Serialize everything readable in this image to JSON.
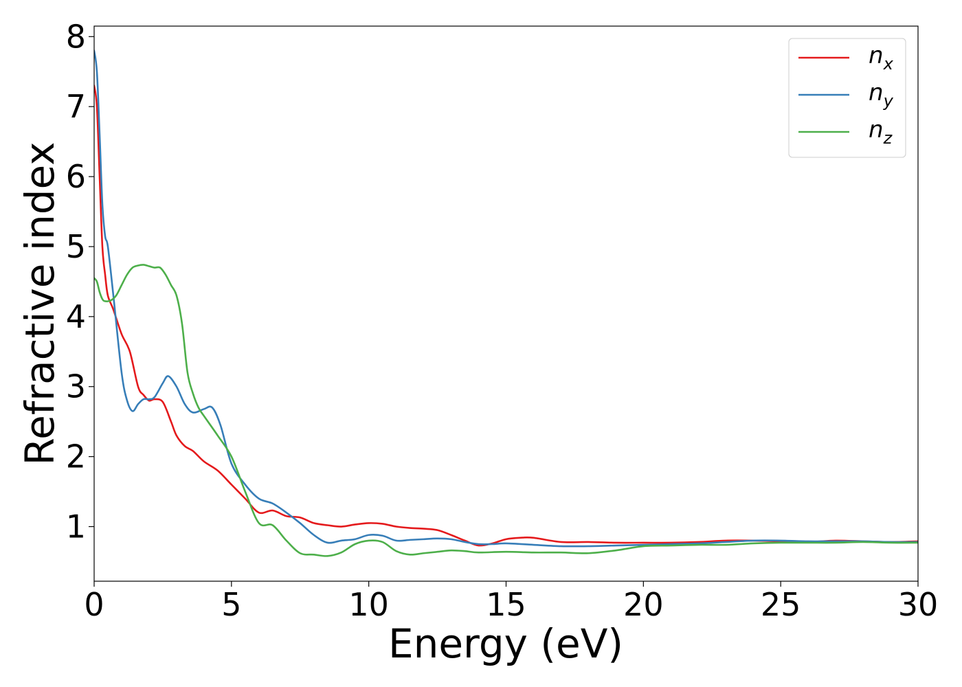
{
  "chart_data": {
    "type": "line",
    "title": "",
    "xlabel": "Energy (eV)",
    "ylabel": "Refractive index",
    "xlim": [
      0,
      30
    ],
    "ylim": [
      0.22,
      8.15
    ],
    "xticks": [
      0,
      5,
      10,
      15,
      20,
      25,
      30
    ],
    "yticks": [
      1,
      2,
      3,
      4,
      5,
      6,
      7,
      8
    ],
    "grid": false,
    "legend_position": "top-right",
    "series": [
      {
        "name": "n_x",
        "base": "n",
        "sub": "x",
        "color": "#e41a1c",
        "x": [
          0,
          0.1,
          0.2,
          0.3,
          0.4,
          0.5,
          0.7,
          1.0,
          1.3,
          1.6,
          1.8,
          2.0,
          2.2,
          2.5,
          2.8,
          3.0,
          3.3,
          3.6,
          4.0,
          4.5,
          5.0,
          5.5,
          6.0,
          6.5,
          7.0,
          7.5,
          8.0,
          8.5,
          9.0,
          9.5,
          10.0,
          10.5,
          11.0,
          11.5,
          12.0,
          12.5,
          13.0,
          13.5,
          14.0,
          14.5,
          15.0,
          15.5,
          16.0,
          17.0,
          18.0,
          19.0,
          20.0,
          21.0,
          22.0,
          23.0,
          24.0,
          25.0,
          26.0,
          27.0,
          28.0,
          29.0,
          30.0
        ],
        "values": [
          7.3,
          7.0,
          6.0,
          5.0,
          4.6,
          4.3,
          4.1,
          3.75,
          3.5,
          3.0,
          2.88,
          2.8,
          2.82,
          2.78,
          2.5,
          2.3,
          2.15,
          2.08,
          1.93,
          1.8,
          1.6,
          1.4,
          1.2,
          1.23,
          1.15,
          1.13,
          1.05,
          1.02,
          1.0,
          1.03,
          1.05,
          1.04,
          1.0,
          0.98,
          0.97,
          0.95,
          0.88,
          0.8,
          0.73,
          0.76,
          0.82,
          0.84,
          0.84,
          0.78,
          0.78,
          0.77,
          0.77,
          0.77,
          0.78,
          0.8,
          0.8,
          0.79,
          0.78,
          0.8,
          0.79,
          0.78,
          0.79
        ]
      },
      {
        "name": "n_y",
        "base": "n",
        "sub": "y",
        "color": "#377eb8",
        "x": [
          0,
          0.1,
          0.2,
          0.3,
          0.4,
          0.5,
          0.7,
          1.0,
          1.2,
          1.4,
          1.6,
          1.8,
          2.0,
          2.2,
          2.5,
          2.7,
          3.0,
          3.3,
          3.6,
          4.0,
          4.3,
          4.6,
          5.0,
          5.5,
          6.0,
          6.5,
          7.0,
          7.5,
          8.0,
          8.5,
          9.0,
          9.5,
          10.0,
          10.5,
          11.0,
          11.5,
          12.0,
          12.5,
          13.0,
          13.5,
          14.0,
          14.5,
          15.0,
          16.0,
          17.0,
          18.0,
          19.0,
          20.0,
          21.0,
          22.0,
          23.0,
          24.0,
          25.0,
          26.0,
          27.0,
          28.0,
          29.0,
          30.0
        ],
        "values": [
          7.8,
          7.5,
          6.6,
          5.6,
          5.15,
          5.0,
          4.3,
          3.2,
          2.8,
          2.65,
          2.75,
          2.82,
          2.82,
          2.85,
          3.05,
          3.15,
          3.0,
          2.75,
          2.63,
          2.68,
          2.7,
          2.45,
          1.9,
          1.6,
          1.4,
          1.33,
          1.2,
          1.05,
          0.88,
          0.77,
          0.8,
          0.82,
          0.88,
          0.87,
          0.8,
          0.81,
          0.82,
          0.83,
          0.82,
          0.78,
          0.75,
          0.75,
          0.76,
          0.74,
          0.72,
          0.72,
          0.73,
          0.74,
          0.75,
          0.76,
          0.78,
          0.8,
          0.8,
          0.79,
          0.79,
          0.79,
          0.78,
          0.78
        ]
      },
      {
        "name": "n_z",
        "base": "n",
        "sub": "z",
        "color": "#4daf4a",
        "x": [
          0,
          0.1,
          0.2,
          0.3,
          0.4,
          0.6,
          0.8,
          1.0,
          1.2,
          1.4,
          1.6,
          1.8,
          2.0,
          2.2,
          2.4,
          2.6,
          2.8,
          3.0,
          3.2,
          3.4,
          3.6,
          3.8,
          4.0,
          4.5,
          5.0,
          5.5,
          6.0,
          6.5,
          7.0,
          7.5,
          8.0,
          8.5,
          9.0,
          9.5,
          10.0,
          10.5,
          11.0,
          11.5,
          12.0,
          12.5,
          13.0,
          13.5,
          14.0,
          15.0,
          16.0,
          17.0,
          18.0,
          19.0,
          20.0,
          21.0,
          22.0,
          23.0,
          24.0,
          25.0,
          26.0,
          27.0,
          28.0,
          29.0,
          30.0
        ],
        "values": [
          4.55,
          4.5,
          4.35,
          4.25,
          4.22,
          4.23,
          4.3,
          4.45,
          4.6,
          4.7,
          4.73,
          4.74,
          4.72,
          4.7,
          4.7,
          4.6,
          4.45,
          4.3,
          3.9,
          3.2,
          2.9,
          2.7,
          2.58,
          2.3,
          2.0,
          1.5,
          1.05,
          1.02,
          0.8,
          0.62,
          0.6,
          0.58,
          0.63,
          0.75,
          0.8,
          0.78,
          0.65,
          0.6,
          0.62,
          0.64,
          0.66,
          0.65,
          0.63,
          0.64,
          0.63,
          0.63,
          0.62,
          0.66,
          0.72,
          0.73,
          0.74,
          0.74,
          0.76,
          0.77,
          0.77,
          0.77,
          0.78,
          0.77,
          0.77
        ]
      }
    ]
  }
}
